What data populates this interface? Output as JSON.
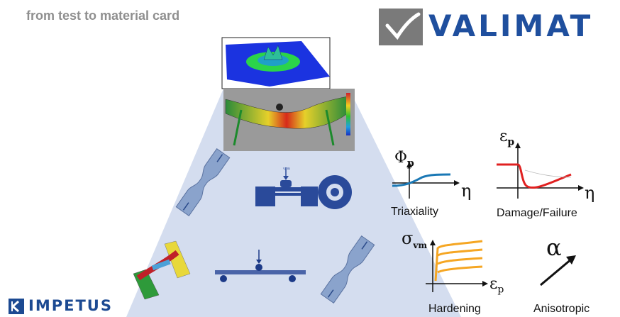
{
  "header": {
    "title": "from test to material card",
    "brand": "VALIMAT",
    "footer_brand": "IMPETUS"
  },
  "colors": {
    "brand_blue": "#1f4f9e",
    "funnel_fill": "#d4ddef",
    "curve_blue": "#1a78b5",
    "curve_red": "#e02020",
    "curve_orange": "#f5a623"
  },
  "icons": [
    "valimat-logo-icon",
    "impetus-logo-icon"
  ],
  "properties": {
    "triaxiality": {
      "symbol": "Φ",
      "subscript": "p",
      "axis": "η",
      "label": "Triaxiality"
    },
    "damage": {
      "symbol": "ε",
      "subscript": "p",
      "axis": "η",
      "label": "Damage/Failure"
    },
    "hardening": {
      "symbol": "σ",
      "subscript": "vm",
      "axis": "ε",
      "axis_subscript": "p",
      "label": "Hardening"
    },
    "anisotropic": {
      "symbol": "α",
      "label": "Anisotropic"
    }
  },
  "test_annotation": "v, m"
}
